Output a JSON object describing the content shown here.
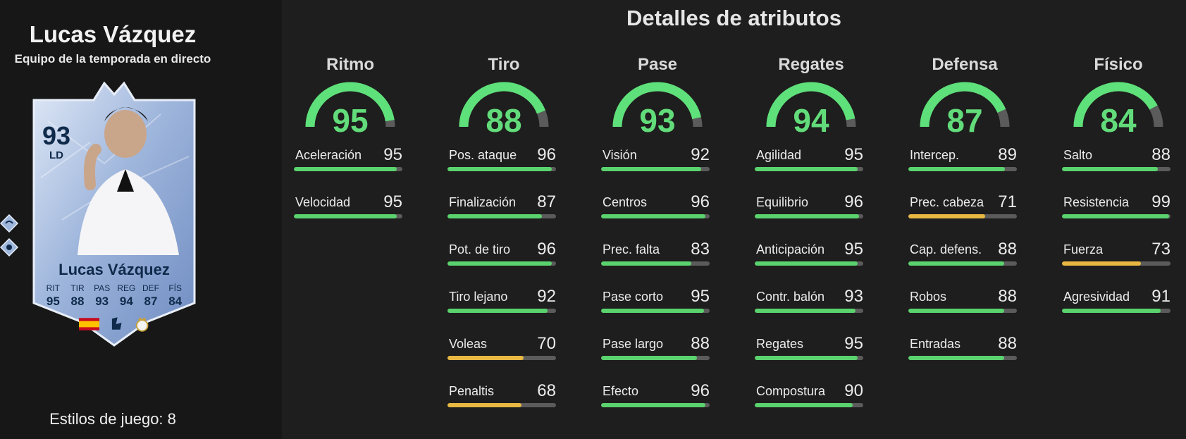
{
  "player": {
    "name": "Lucas Vázquez",
    "promo": "Equipo de la temporada en directo",
    "rating": "93",
    "position": "LD",
    "card_name": "Lucas Vázquez",
    "card_stats": [
      {
        "label": "RIT",
        "value": "95"
      },
      {
        "label": "TIR",
        "value": "88"
      },
      {
        "label": "PAS",
        "value": "93"
      },
      {
        "label": "REG",
        "value": "94"
      },
      {
        "label": "DEF",
        "value": "87"
      },
      {
        "label": "FÍS",
        "value": "84"
      }
    ],
    "league_text": "LALIGA",
    "playstyles": "Estilos de juego: 8"
  },
  "title": "Detalles de atributos",
  "colors": {
    "high": "#5ad36e",
    "mid": "#e8b842",
    "track": "#5a5b5a",
    "gauge": "#5ee07a"
  },
  "categories": [
    {
      "name": "Ritmo",
      "value": 95,
      "stats": [
        {
          "label": "Aceleración",
          "value": 95
        },
        {
          "label": "Velocidad",
          "value": 95
        }
      ]
    },
    {
      "name": "Tiro",
      "value": 88,
      "stats": [
        {
          "label": "Pos. ataque",
          "value": 96
        },
        {
          "label": "Finalización",
          "value": 87
        },
        {
          "label": "Pot. de tiro",
          "value": 96
        },
        {
          "label": "Tiro lejano",
          "value": 92
        },
        {
          "label": "Voleas",
          "value": 70
        },
        {
          "label": "Penaltis",
          "value": 68
        }
      ]
    },
    {
      "name": "Pase",
      "value": 93,
      "stats": [
        {
          "label": "Visión",
          "value": 92
        },
        {
          "label": "Centros",
          "value": 96
        },
        {
          "label": "Prec. falta",
          "value": 83
        },
        {
          "label": "Pase corto",
          "value": 95
        },
        {
          "label": "Pase largo",
          "value": 88
        },
        {
          "label": "Efecto",
          "value": 96
        }
      ]
    },
    {
      "name": "Regates",
      "value": 94,
      "stats": [
        {
          "label": "Agilidad",
          "value": 95
        },
        {
          "label": "Equilibrio",
          "value": 96
        },
        {
          "label": "Anticipación",
          "value": 95
        },
        {
          "label": "Contr. balón",
          "value": 93
        },
        {
          "label": "Regates",
          "value": 95
        },
        {
          "label": "Compostura",
          "value": 90
        }
      ]
    },
    {
      "name": "Defensa",
      "value": 87,
      "stats": [
        {
          "label": "Intercep.",
          "value": 89
        },
        {
          "label": "Prec. cabeza",
          "value": 71
        },
        {
          "label": "Cap. defens.",
          "value": 88
        },
        {
          "label": "Robos",
          "value": 88
        },
        {
          "label": "Entradas",
          "value": 88
        }
      ]
    },
    {
      "name": "Físico",
      "value": 84,
      "stats": [
        {
          "label": "Salto",
          "value": 88
        },
        {
          "label": "Resistencia",
          "value": 99
        },
        {
          "label": "Fuerza",
          "value": 73
        },
        {
          "label": "Agresividad",
          "value": 91
        }
      ]
    }
  ]
}
